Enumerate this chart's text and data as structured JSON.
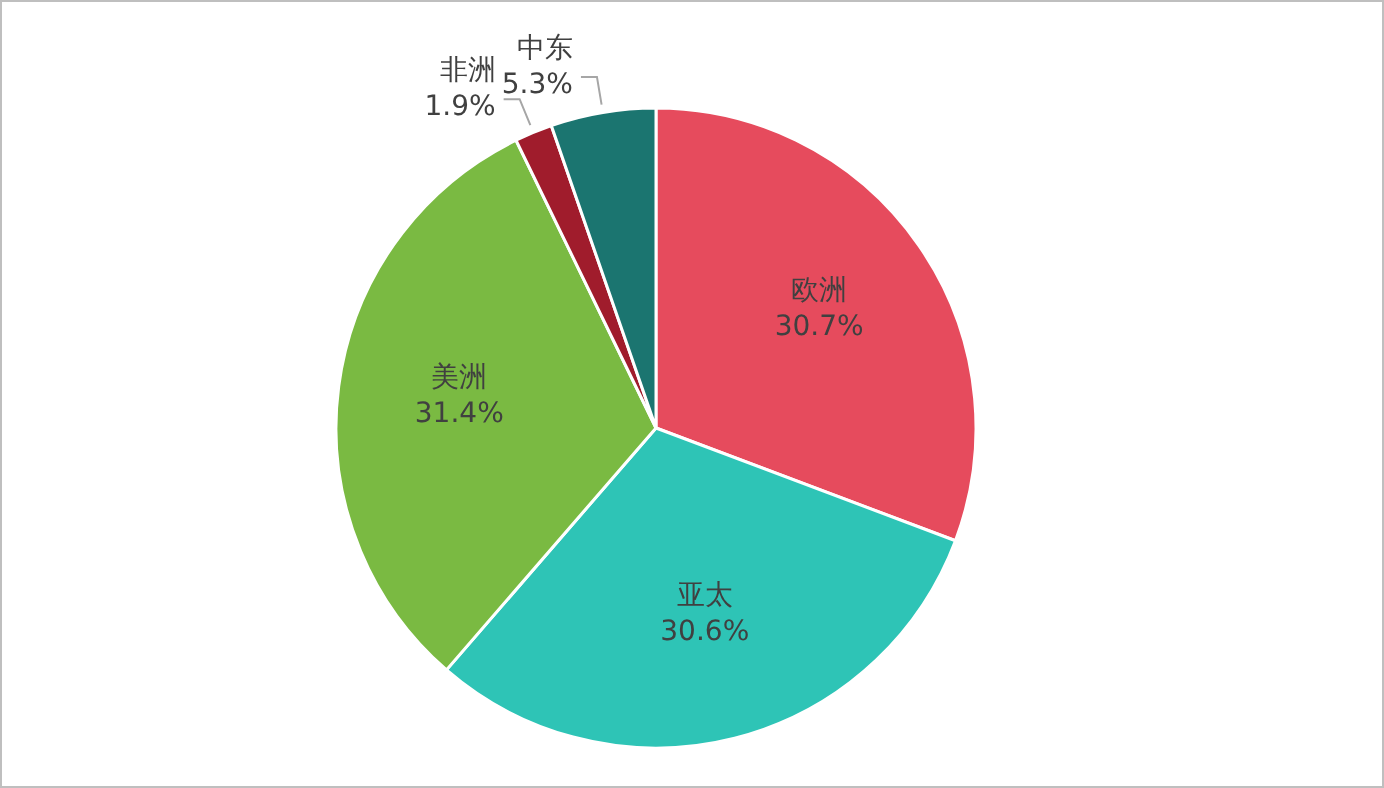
{
  "chart_data": {
    "type": "pie",
    "categories": [
      "欧洲",
      "亚太",
      "美洲",
      "非洲",
      "中东"
    ],
    "values": [
      30.7,
      30.6,
      31.4,
      1.9,
      5.3
    ],
    "colors": [
      "#e64b5d",
      "#2ec4b6",
      "#7aba42",
      "#a01c2c",
      "#1b7570"
    ],
    "value_labels": [
      "30.7%",
      "30.6%",
      "31.4%",
      "1.9%",
      "5.3%"
    ],
    "legend": false
  }
}
